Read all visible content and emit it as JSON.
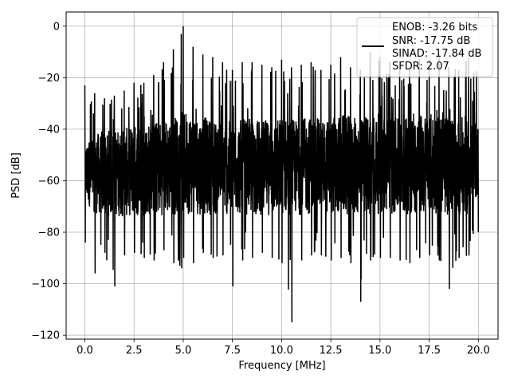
{
  "chart_data": {
    "type": "line",
    "title": "",
    "xlabel": "Frequency [MHz]",
    "ylabel": "PSD [dB]",
    "xlim": [
      -0.95,
      21.0
    ],
    "ylim": [
      -121.5,
      5.5
    ],
    "xticks": [
      0.0,
      2.5,
      5.0,
      7.5,
      10.0,
      12.5,
      15.0,
      17.5,
      20.0
    ],
    "xtick_labels": [
      "0.0",
      "2.5",
      "5.0",
      "7.5",
      "10.0",
      "12.5",
      "15.0",
      "17.5",
      "20.0"
    ],
    "yticks": [
      0,
      -20,
      -40,
      -60,
      -80,
      -100,
      -120
    ],
    "ytick_labels": [
      "0",
      "−20",
      "−40",
      "−60",
      "−80",
      "−100",
      "−120"
    ],
    "grid": true,
    "legend_position": "top-right",
    "legend_entries": [
      "ENOB: -3.26 bits",
      "SNR: -17.75 dB",
      "SINAD: -17.84 dB",
      "SFDR: 2.07"
    ],
    "series": [
      {
        "color": "#000000",
        "x_range": [
          0.0,
          20.0
        ],
        "envelope": {
          "x": [
            0.0,
            0.5,
            1.0,
            1.5,
            2.0,
            2.5,
            3.0,
            3.5,
            4.0,
            4.5,
            4.9,
            5.0,
            5.5,
            6.0,
            6.5,
            7.0,
            7.5,
            8.0,
            8.5,
            9.0,
            9.5,
            10.0,
            10.5,
            11.0,
            11.5,
            12.0,
            12.5,
            13.0,
            13.5,
            14.0,
            14.5,
            15.0,
            15.5,
            16.0,
            16.5,
            17.0,
            17.5,
            18.0,
            18.5,
            19.0,
            19.5,
            20.0
          ],
          "upper": [
            -23,
            -26,
            -28,
            -27,
            -25,
            -22,
            -22,
            -19,
            -14,
            -9,
            -3,
            0,
            -8,
            -11,
            -12,
            -14,
            -17,
            -14,
            -14,
            -15,
            -16,
            -13,
            -16,
            -15,
            -14,
            -17,
            -15,
            -12,
            -16,
            -17,
            -10,
            -12,
            -14,
            -17,
            -16,
            -13,
            -13,
            -11,
            -16,
            -17,
            -12,
            -18
          ],
          "typical_high": [
            -45,
            -42,
            -40,
            -40,
            -40,
            -38,
            -38,
            -37,
            -36,
            -35,
            -33,
            -32,
            -34,
            -35,
            -36,
            -36,
            -37,
            -36,
            -36,
            -36,
            -37,
            -35,
            -36,
            -36,
            -35,
            -36,
            -36,
            -34,
            -35,
            -36,
            -33,
            -34,
            -35,
            -36,
            -35,
            -34,
            -34,
            -33,
            -35,
            -36,
            -34,
            -38
          ],
          "typical_low": [
            -72,
            -78,
            -80,
            -80,
            -80,
            -80,
            -80,
            -80,
            -80,
            -80,
            -80,
            -80,
            -80,
            -80,
            -80,
            -80,
            -80,
            -80,
            -80,
            -80,
            -80,
            -80,
            -80,
            -80,
            -80,
            -80,
            -80,
            -80,
            -80,
            -80,
            -80,
            -80,
            -80,
            -80,
            -80,
            -80,
            -80,
            -80,
            -80,
            -80,
            -80,
            -70
          ],
          "lower": [
            -84,
            -96,
            -88,
            -101,
            -89,
            -88,
            -90,
            -91,
            -87,
            -92,
            -94,
            -90,
            -92,
            -88,
            -90,
            -89,
            -101,
            -91,
            -90,
            -88,
            -90,
            -92,
            -115,
            -91,
            -89,
            -89,
            -91,
            -90,
            -92,
            -107,
            -91,
            -90,
            -90,
            -91,
            -92,
            -90,
            -89,
            -91,
            -102,
            -90,
            -89,
            -80
          ]
        }
      }
    ]
  }
}
